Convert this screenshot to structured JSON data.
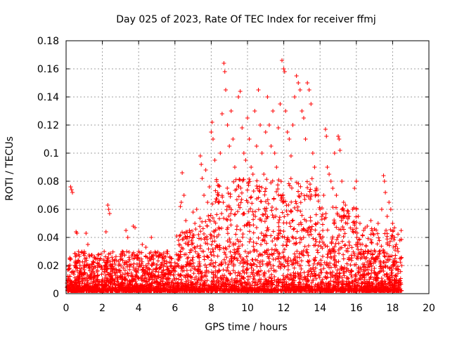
{
  "chart_data": {
    "type": "scatter",
    "title": "Day 025 of 2023, Rate Of TEC Index for receiver ffmj",
    "xlabel": "GPS time / hours",
    "ylabel": "ROTI / TECUs",
    "xlim": [
      0,
      20
    ],
    "ylim": [
      0,
      0.18
    ],
    "xticks": [
      0,
      2,
      4,
      6,
      8,
      10,
      12,
      14,
      16,
      18,
      20
    ],
    "xtick_labels": [
      "0",
      "2",
      "4",
      "6",
      "8",
      "10",
      "12",
      "14",
      "16",
      "18",
      "20"
    ],
    "yticks": [
      0,
      0.02,
      0.04,
      0.06,
      0.08,
      0.1,
      0.12,
      0.14,
      0.16,
      0.18
    ],
    "ytick_labels": [
      "0",
      "0.02",
      "0.04",
      "0.06",
      "0.08",
      "0.1",
      "0.12",
      "0.14",
      "0.16",
      "0.18"
    ],
    "grid": true,
    "marker": "+",
    "marker_color": "#ff0000",
    "series": [
      {
        "name": "ROTI",
        "points": [
          [
            0.1,
            0.012
          ],
          [
            0.2,
            0.018
          ],
          [
            0.25,
            0.076
          ],
          [
            0.3,
            0.074
          ],
          [
            0.35,
            0.072
          ],
          [
            0.5,
            0.02
          ],
          [
            0.55,
            0.044
          ],
          [
            0.6,
            0.043
          ],
          [
            0.7,
            0.028
          ],
          [
            0.8,
            0.015
          ],
          [
            1.0,
            0.03
          ],
          [
            1.1,
            0.043
          ],
          [
            1.2,
            0.035
          ],
          [
            1.3,
            0.02
          ],
          [
            1.5,
            0.022
          ],
          [
            1.7,
            0.012
          ],
          [
            1.9,
            0.025
          ],
          [
            2.1,
            0.03
          ],
          [
            2.2,
            0.044
          ],
          [
            2.3,
            0.063
          ],
          [
            2.35,
            0.06
          ],
          [
            2.4,
            0.057
          ],
          [
            2.5,
            0.02
          ],
          [
            2.7,
            0.015
          ],
          [
            2.9,
            0.02
          ],
          [
            3.1,
            0.03
          ],
          [
            3.3,
            0.045
          ],
          [
            3.4,
            0.04
          ],
          [
            3.5,
            0.02
          ],
          [
            3.7,
            0.048
          ],
          [
            3.8,
            0.047
          ],
          [
            3.9,
            0.025
          ],
          [
            4.0,
            0.03
          ],
          [
            4.2,
            0.035
          ],
          [
            4.4,
            0.033
          ],
          [
            4.5,
            0.015
          ],
          [
            4.7,
            0.04
          ],
          [
            4.8,
            0.022
          ],
          [
            5.0,
            0.018
          ],
          [
            5.2,
            0.028
          ],
          [
            5.4,
            0.025
          ],
          [
            5.6,
            0.03
          ],
          [
            5.8,
            0.02
          ],
          [
            6.0,
            0.022
          ],
          [
            6.1,
            0.041
          ],
          [
            6.2,
            0.038
          ],
          [
            6.3,
            0.062
          ],
          [
            6.35,
            0.065
          ],
          [
            6.4,
            0.086
          ],
          [
            6.5,
            0.07
          ],
          [
            6.6,
            0.052
          ],
          [
            6.7,
            0.035
          ],
          [
            6.8,
            0.045
          ],
          [
            7.0,
            0.058
          ],
          [
            7.1,
            0.05
          ],
          [
            7.2,
            0.06
          ],
          [
            7.3,
            0.042
          ],
          [
            7.4,
            0.098
          ],
          [
            7.45,
            0.092
          ],
          [
            7.5,
            0.082
          ],
          [
            7.6,
            0.07
          ],
          [
            7.7,
            0.088
          ],
          [
            7.8,
            0.065
          ],
          [
            7.9,
            0.076
          ],
          [
            8.0,
            0.115
          ],
          [
            8.05,
            0.122
          ],
          [
            8.1,
            0.11
          ],
          [
            8.2,
            0.095
          ],
          [
            8.3,
            0.08
          ],
          [
            8.4,
            0.07
          ],
          [
            8.5,
            0.1
          ],
          [
            8.6,
            0.128
          ],
          [
            8.7,
            0.164
          ],
          [
            8.75,
            0.158
          ],
          [
            8.8,
            0.145
          ],
          [
            8.9,
            0.12
          ],
          [
            9.0,
            0.105
          ],
          [
            9.1,
            0.13
          ],
          [
            9.2,
            0.11
          ],
          [
            9.3,
            0.09
          ],
          [
            9.5,
            0.14
          ],
          [
            9.6,
            0.144
          ],
          [
            9.7,
            0.118
          ],
          [
            9.8,
            0.1
          ],
          [
            9.9,
            0.095
          ],
          [
            10.0,
            0.125
          ],
          [
            10.1,
            0.11
          ],
          [
            10.2,
            0.09
          ],
          [
            10.3,
            0.085
          ],
          [
            10.4,
            0.13
          ],
          [
            10.5,
            0.105
          ],
          [
            10.6,
            0.145
          ],
          [
            10.7,
            0.12
          ],
          [
            10.8,
            0.1
          ],
          [
            10.9,
            0.085
          ],
          [
            11.0,
            0.115
          ],
          [
            11.1,
            0.14
          ],
          [
            11.2,
            0.12
          ],
          [
            11.3,
            0.105
          ],
          [
            11.4,
            0.13
          ],
          [
            11.5,
            0.1
          ],
          [
            11.6,
            0.09
          ],
          [
            11.7,
            0.118
          ],
          [
            11.8,
            0.135
          ],
          [
            11.9,
            0.166
          ],
          [
            12.0,
            0.16
          ],
          [
            12.05,
            0.158
          ],
          [
            12.1,
            0.13
          ],
          [
            12.2,
            0.115
          ],
          [
            12.3,
            0.11
          ],
          [
            12.4,
            0.098
          ],
          [
            12.5,
            0.12
          ],
          [
            12.6,
            0.14
          ],
          [
            12.7,
            0.155
          ],
          [
            12.8,
            0.15
          ],
          [
            12.9,
            0.145
          ],
          [
            13.0,
            0.13
          ],
          [
            13.1,
            0.125
          ],
          [
            13.2,
            0.11
          ],
          [
            13.3,
            0.15
          ],
          [
            13.4,
            0.145
          ],
          [
            13.5,
            0.135
          ],
          [
            13.6,
            0.1
          ],
          [
            13.7,
            0.09
          ],
          [
            13.8,
            0.075
          ],
          [
            13.9,
            0.07
          ],
          [
            14.0,
            0.06
          ],
          [
            14.1,
            0.055
          ],
          [
            14.2,
            0.07
          ],
          [
            14.3,
            0.117
          ],
          [
            14.35,
            0.112
          ],
          [
            14.4,
            0.09
          ],
          [
            14.5,
            0.085
          ],
          [
            14.6,
            0.08
          ],
          [
            14.7,
            0.075
          ],
          [
            14.8,
            0.1
          ],
          [
            14.9,
            0.07
          ],
          [
            15.0,
            0.112
          ],
          [
            15.05,
            0.11
          ],
          [
            15.1,
            0.102
          ],
          [
            15.2,
            0.08
          ],
          [
            15.3,
            0.065
          ],
          [
            15.4,
            0.063
          ],
          [
            15.5,
            0.05
          ],
          [
            15.6,
            0.055
          ],
          [
            15.8,
            0.06
          ],
          [
            15.9,
            0.075
          ],
          [
            16.0,
            0.08
          ],
          [
            16.1,
            0.055
          ],
          [
            16.2,
            0.05
          ],
          [
            16.4,
            0.045
          ],
          [
            16.6,
            0.048
          ],
          [
            16.8,
            0.052
          ],
          [
            17.0,
            0.046
          ],
          [
            17.2,
            0.05
          ],
          [
            17.4,
            0.06
          ],
          [
            17.5,
            0.084
          ],
          [
            17.55,
            0.08
          ],
          [
            17.6,
            0.072
          ],
          [
            17.7,
            0.055
          ],
          [
            17.8,
            0.065
          ],
          [
            17.9,
            0.06
          ],
          [
            18.0,
            0.05
          ],
          [
            18.1,
            0.04
          ],
          [
            18.2,
            0.035
          ],
          [
            18.3,
            0.03
          ],
          [
            18.4,
            0.038
          ],
          [
            18.5,
            0.02
          ]
        ]
      }
    ]
  }
}
